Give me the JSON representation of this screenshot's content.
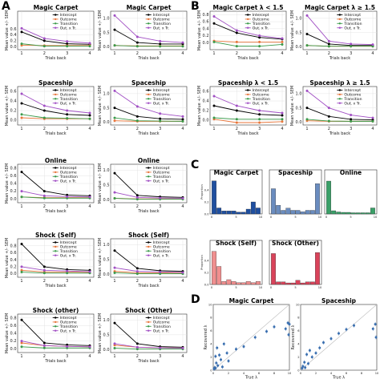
{
  "panel_letters": [
    "A",
    "B",
    "C",
    "D"
  ],
  "legend": [
    "Intercept",
    "Outcome",
    "Transition",
    "Out. x Tr."
  ],
  "series_colors": [
    "#000000",
    "#e8753a",
    "#3a9a4a",
    "#a14fc4"
  ],
  "ylabel_mean": "Mean value +/- SEM",
  "xlabel_trials": "Trials back",
  "x_ticks": [
    "1",
    "2",
    "3",
    "4"
  ],
  "ylabel_prop": "Proportion",
  "ylabel_recovered": "Recovered λ",
  "xlabel_true": "True λ",
  "chart_data": [
    {
      "type": "line",
      "panel": "A",
      "title": "Magic Carpet",
      "x": [
        1,
        2,
        3,
        4
      ],
      "ylim": [
        -0.1,
        1.2
      ],
      "yticks": [
        "0.0",
        "0.2",
        "0.4",
        "0.6"
      ],
      "series": [
        {
          "name": "Intercept",
          "values": [
            0.5,
            0.2,
            0.1,
            0.08
          ]
        },
        {
          "name": "Outcome",
          "values": [
            0.05,
            0.04,
            0.04,
            0.04
          ]
        },
        {
          "name": "Transition",
          "values": [
            0.1,
            0.02,
            0.02,
            0.02
          ]
        },
        {
          "name": "Out. x Tr.",
          "values": [
            0.62,
            0.28,
            0.18,
            0.12
          ]
        }
      ]
    },
    {
      "type": "line",
      "panel": "A",
      "title": "Magic Carpet",
      "x": [
        1,
        2,
        3,
        4
      ],
      "ylim": [
        -0.1,
        1.25
      ],
      "yticks": [
        "0.0",
        "0.5",
        "1.0"
      ],
      "series": [
        {
          "name": "Intercept",
          "values": [
            0.6,
            0.15,
            0.1,
            0.1
          ]
        },
        {
          "name": "Outcome",
          "values": [
            0.05,
            0.03,
            0.03,
            0.03
          ]
        },
        {
          "name": "Transition",
          "values": [
            0.05,
            0.02,
            0.02,
            0.02
          ]
        },
        {
          "name": "Out. x Tr.",
          "values": [
            1.1,
            0.35,
            0.2,
            0.15
          ]
        }
      ]
    },
    {
      "type": "line",
      "panel": "B",
      "title": "Magic Carpet λ < 1.5",
      "x": [
        1,
        2,
        3,
        4
      ],
      "ylim": [
        -0.2,
        0.9
      ],
      "yticks": [
        "0.0",
        "0.2",
        "0.4",
        "0.6",
        "0.8"
      ],
      "series": [
        {
          "name": "Intercept",
          "values": [
            0.55,
            0.28,
            0.15,
            0.1
          ]
        },
        {
          "name": "Outcome",
          "values": [
            0.05,
            0.02,
            0.02,
            0.02
          ]
        },
        {
          "name": "Transition",
          "values": [
            0.02,
            -0.1,
            -0.1,
            -0.05
          ]
        },
        {
          "name": "Out. x Tr.",
          "values": [
            0.75,
            0.35,
            0.2,
            0.12
          ]
        }
      ]
    },
    {
      "type": "line",
      "panel": "B",
      "title": "Magic Carpet λ ≥ 1.5",
      "x": [
        1,
        2,
        3,
        4
      ],
      "ylim": [
        -0.1,
        1.25
      ],
      "yticks": [
        "0.0",
        "0.5",
        "1.0"
      ],
      "series": [
        {
          "name": "Intercept",
          "values": [
            0.45,
            0.1,
            0.05,
            0.05
          ]
        },
        {
          "name": "Outcome",
          "values": [
            0.05,
            0.02,
            0.02,
            0.02
          ]
        },
        {
          "name": "Transition",
          "values": [
            0.05,
            0.02,
            0.02,
            0.02
          ]
        },
        {
          "name": "Out. x Tr.",
          "values": [
            1.1,
            0.2,
            0.1,
            0.08
          ]
        }
      ]
    },
    {
      "type": "line",
      "panel": "A",
      "title": "Spaceship",
      "x": [
        1,
        2,
        3,
        4
      ],
      "ylim": [
        -0.1,
        0.7
      ],
      "yticks": [
        "0.0",
        "0.2",
        "0.4",
        "0.6"
      ],
      "series": [
        {
          "name": "Intercept",
          "values": [
            0.35,
            0.2,
            0.12,
            0.1
          ]
        },
        {
          "name": "Outcome",
          "values": [
            0.05,
            0.03,
            0.03,
            0.03
          ]
        },
        {
          "name": "Transition",
          "values": [
            0.12,
            0.05,
            0.04,
            0.03
          ]
        },
        {
          "name": "Out. x Tr.",
          "values": [
            0.55,
            0.3,
            0.2,
            0.15
          ]
        }
      ]
    },
    {
      "type": "line",
      "panel": "A",
      "title": "Spaceship",
      "x": [
        1,
        2,
        3,
        4
      ],
      "ylim": [
        -0.1,
        1.25
      ],
      "yticks": [
        "0.0",
        "0.5",
        "1.0"
      ],
      "series": [
        {
          "name": "Intercept",
          "values": [
            0.5,
            0.2,
            0.12,
            0.1
          ]
        },
        {
          "name": "Outcome",
          "values": [
            0.05,
            0.03,
            0.03,
            0.03
          ]
        },
        {
          "name": "Transition",
          "values": [
            0.15,
            0.05,
            0.04,
            0.03
          ]
        },
        {
          "name": "Out. x Tr.",
          "values": [
            1.1,
            0.55,
            0.3,
            0.2
          ]
        }
      ]
    },
    {
      "type": "line",
      "panel": "B",
      "title": "Spaceship λ < 1.5",
      "x": [
        1,
        2,
        3,
        4
      ],
      "ylim": [
        -0.1,
        0.7
      ],
      "yticks": [
        "0.0",
        "0.2",
        "0.4",
        "0.6"
      ],
      "series": [
        {
          "name": "Intercept",
          "values": [
            0.3,
            0.2,
            0.12,
            0.1
          ]
        },
        {
          "name": "Outcome",
          "values": [
            0.02,
            -0.05,
            -0.05,
            -0.03
          ]
        },
        {
          "name": "Transition",
          "values": [
            0.05,
            0.02,
            0.02,
            0.02
          ]
        },
        {
          "name": "Out. x Tr.",
          "values": [
            0.5,
            0.3,
            0.2,
            0.15
          ]
        }
      ]
    },
    {
      "type": "line",
      "panel": "B",
      "title": "Spaceship λ ≥ 1.5",
      "x": [
        1,
        2,
        3,
        4
      ],
      "ylim": [
        -0.1,
        1.25
      ],
      "yticks": [
        "0.0",
        "0.5",
        "1.0"
      ],
      "series": [
        {
          "name": "Intercept",
          "values": [
            0.5,
            0.2,
            0.1,
            0.08
          ]
        },
        {
          "name": "Outcome",
          "values": [
            0.05,
            0.03,
            0.03,
            0.03
          ]
        },
        {
          "name": "Transition",
          "values": [
            0.1,
            0.04,
            0.03,
            0.03
          ]
        },
        {
          "name": "Out. x Tr.",
          "values": [
            1.1,
            0.5,
            0.25,
            0.15
          ]
        }
      ]
    },
    {
      "type": "line",
      "panel": "A",
      "title": "Online",
      "x": [
        1,
        2,
        3,
        4
      ],
      "ylim": [
        -0.1,
        0.9
      ],
      "yticks": [
        "0.0",
        "0.2",
        "0.4",
        "0.6",
        "0.8"
      ],
      "series": [
        {
          "name": "Intercept",
          "values": [
            0.7,
            0.2,
            0.1,
            0.08
          ]
        },
        {
          "name": "Outcome",
          "values": [
            0.05,
            0.03,
            0.03,
            0.03
          ]
        },
        {
          "name": "Transition",
          "values": [
            0.05,
            0.02,
            0.02,
            0.02
          ]
        },
        {
          "name": "Out. x Tr.",
          "values": [
            0.2,
            0.08,
            0.06,
            0.05
          ]
        }
      ]
    },
    {
      "type": "line",
      "panel": "A",
      "title": "Online",
      "x": [
        1,
        2,
        3,
        4
      ],
      "ylim": [
        -0.1,
        1.2
      ],
      "yticks": [
        "0.0",
        "0.5",
        "1.0"
      ],
      "series": [
        {
          "name": "Intercept",
          "values": [
            0.9,
            0.15,
            0.1,
            0.08
          ]
        },
        {
          "name": "Outcome",
          "values": [
            0.05,
            0.03,
            0.03,
            0.03
          ]
        },
        {
          "name": "Transition",
          "values": [
            0.05,
            0.02,
            0.02,
            0.02
          ]
        },
        {
          "name": "Out. x Tr.",
          "values": [
            0.25,
            0.08,
            0.06,
            0.05
          ]
        }
      ]
    },
    {
      "type": "line",
      "panel": "A",
      "title": "Shock (Self)",
      "x": [
        1,
        2,
        3,
        4
      ],
      "ylim": [
        -0.1,
        1.0
      ],
      "yticks": [
        "0.0",
        "0.2",
        "0.4",
        "0.6",
        "0.8"
      ],
      "series": [
        {
          "name": "Intercept",
          "values": [
            0.85,
            0.2,
            0.12,
            0.1
          ]
        },
        {
          "name": "Outcome",
          "values": [
            0.1,
            0.05,
            0.05,
            0.04
          ]
        },
        {
          "name": "Transition",
          "values": [
            0.05,
            0.02,
            0.02,
            0.02
          ]
        },
        {
          "name": "Out. x Tr.",
          "values": [
            0.2,
            0.1,
            0.08,
            0.06
          ]
        }
      ]
    },
    {
      "type": "line",
      "panel": "A",
      "title": "Shock (Self)",
      "x": [
        1,
        2,
        3,
        4
      ],
      "ylim": [
        -0.1,
        1.2
      ],
      "yticks": [
        "0.0",
        "0.5",
        "1.0"
      ],
      "series": [
        {
          "name": "Intercept",
          "values": [
            0.8,
            0.2,
            0.12,
            0.1
          ]
        },
        {
          "name": "Outcome",
          "values": [
            0.1,
            0.05,
            0.05,
            0.04
          ]
        },
        {
          "name": "Transition",
          "values": [
            0.05,
            0.02,
            0.02,
            0.02
          ]
        },
        {
          "name": "Out. x Tr.",
          "values": [
            0.22,
            0.1,
            0.08,
            0.06
          ]
        }
      ]
    },
    {
      "type": "line",
      "panel": "A",
      "title": "Shock (other)",
      "x": [
        1,
        2,
        3,
        4
      ],
      "ylim": [
        -0.1,
        0.9
      ],
      "yticks": [
        "0.0",
        "0.2",
        "0.4",
        "0.6",
        "0.8"
      ],
      "series": [
        {
          "name": "Intercept",
          "values": [
            0.75,
            0.15,
            0.1,
            0.08
          ]
        },
        {
          "name": "Outcome",
          "values": [
            0.15,
            0.08,
            0.06,
            0.05
          ]
        },
        {
          "name": "Transition",
          "values": [
            0.05,
            0.02,
            0.02,
            0.02
          ]
        },
        {
          "name": "Out. x Tr.",
          "values": [
            0.2,
            0.08,
            0.06,
            0.05
          ]
        }
      ]
    },
    {
      "type": "line",
      "panel": "A",
      "title": "Shock (Other)",
      "x": [
        1,
        2,
        3,
        4
      ],
      "ylim": [
        -0.1,
        1.2
      ],
      "yticks": [
        "0.0",
        "0.5",
        "1.0"
      ],
      "series": [
        {
          "name": "Intercept",
          "values": [
            0.9,
            0.2,
            0.1,
            0.08
          ]
        },
        {
          "name": "Outcome",
          "values": [
            0.15,
            0.08,
            0.06,
            0.05
          ]
        },
        {
          "name": "Transition",
          "values": [
            0.05,
            0.02,
            0.02,
            0.02
          ]
        },
        {
          "name": "Out. x Tr.",
          "values": [
            0.2,
            0.08,
            0.06,
            0.05
          ]
        }
      ]
    },
    {
      "type": "bar",
      "panel": "C",
      "title": "Magic Carpet",
      "color": "#1f4fa0",
      "values": [
        0.55,
        0.1,
        0.05,
        0.05,
        0.05,
        0.03,
        0.03,
        0.08,
        0.2,
        0.1
      ],
      "ylim": [
        0,
        0.6
      ],
      "yticks": [
        "0.0",
        "0.2",
        "0.4"
      ],
      "xticks": [
        "0",
        "5",
        "10"
      ]
    },
    {
      "type": "bar",
      "panel": "C",
      "title": "Spaceship",
      "color": "#6a8cbf",
      "values": [
        0.35,
        0.12,
        0.05,
        0.08,
        0.05,
        0.05,
        0.03,
        0.05,
        0.05,
        0.42
      ],
      "ylim": [
        0,
        0.5
      ],
      "xticks": [
        "0",
        "5",
        "10"
      ]
    },
    {
      "type": "bar",
      "panel": "C",
      "title": "Online",
      "color": "#3aa068",
      "values": [
        0.82,
        0.08,
        0.05,
        0.04,
        0.04,
        0.03,
        0.03,
        0.03,
        0.03,
        0.15
      ],
      "ylim": [
        0,
        0.9
      ],
      "xticks": [
        "0",
        "5",
        "10"
      ]
    },
    {
      "type": "bar",
      "panel": "C",
      "title": "Shock (Self)",
      "color": "#f08f8f",
      "values": [
        0.55,
        0.3,
        0.05,
        0.08,
        0.05,
        0.03,
        0.03,
        0.05,
        0.03,
        0.05
      ],
      "ylim": [
        0,
        0.6
      ],
      "yticks": [
        "0.0",
        "0.2",
        "0.4"
      ],
      "xticks": [
        "0",
        "5",
        "10"
      ]
    },
    {
      "type": "bar",
      "panel": "C",
      "title": "Shock (Other)",
      "color": "#d9435a",
      "values": [
        0.6,
        0.05,
        0.05,
        0.03,
        0.03,
        0.08,
        0.03,
        0.05,
        0.05,
        0.62
      ],
      "ylim": [
        0,
        0.7
      ],
      "xticks": [
        "0",
        "5",
        "10"
      ]
    },
    {
      "type": "scatter",
      "panel": "D",
      "title": "Magic Carpet",
      "xlim": [
        0,
        10
      ],
      "ylim": [
        0,
        10
      ],
      "xticks": [
        "0",
        "2",
        "4",
        "6",
        "8",
        "10"
      ],
      "yticks": [
        "0",
        "2",
        "4",
        "6",
        "8",
        "10"
      ],
      "points": [
        [
          0.2,
          0.4
        ],
        [
          0.3,
          2.1
        ],
        [
          0.4,
          1.1
        ],
        [
          0.5,
          3.4
        ],
        [
          0.6,
          0.7
        ],
        [
          0.8,
          2.3
        ],
        [
          1.0,
          1.6
        ],
        [
          1.2,
          0.5
        ],
        [
          1.4,
          4.0
        ],
        [
          1.8,
          2.6
        ],
        [
          2.0,
          1.4
        ],
        [
          3.0,
          3.2
        ],
        [
          4.0,
          3.6
        ],
        [
          5.5,
          5.0
        ],
        [
          7.0,
          5.9
        ],
        [
          8.0,
          6.6
        ],
        [
          9.5,
          6.3
        ],
        [
          9.8,
          7.2
        ],
        [
          10,
          7.0
        ],
        [
          9.9,
          5.4
        ],
        [
          0.1,
          0.2
        ],
        [
          0.3,
          0.3
        ]
      ]
    },
    {
      "type": "scatter",
      "panel": "D",
      "title": "Spaceship",
      "xlim": [
        0,
        10
      ],
      "ylim": [
        0,
        10
      ],
      "xticks": [
        "0",
        "2",
        "4",
        "6",
        "8",
        "10"
      ],
      "yticks": [
        "0",
        "2",
        "4",
        "6",
        "8",
        "10"
      ],
      "points": [
        [
          0.2,
          0.3
        ],
        [
          0.3,
          0.6
        ],
        [
          0.5,
          1.2
        ],
        [
          0.6,
          0.4
        ],
        [
          0.8,
          2.4
        ],
        [
          1.0,
          1.0
        ],
        [
          1.2,
          3.0
        ],
        [
          1.5,
          2.0
        ],
        [
          2.0,
          2.6
        ],
        [
          2.5,
          3.4
        ],
        [
          3.0,
          4.2
        ],
        [
          4.0,
          4.8
        ],
        [
          5.0,
          5.6
        ],
        [
          6.0,
          6.2
        ],
        [
          7.0,
          6.8
        ],
        [
          9.5,
          6.3
        ],
        [
          9.8,
          7.0
        ],
        [
          9.9,
          5.0
        ]
      ]
    }
  ]
}
